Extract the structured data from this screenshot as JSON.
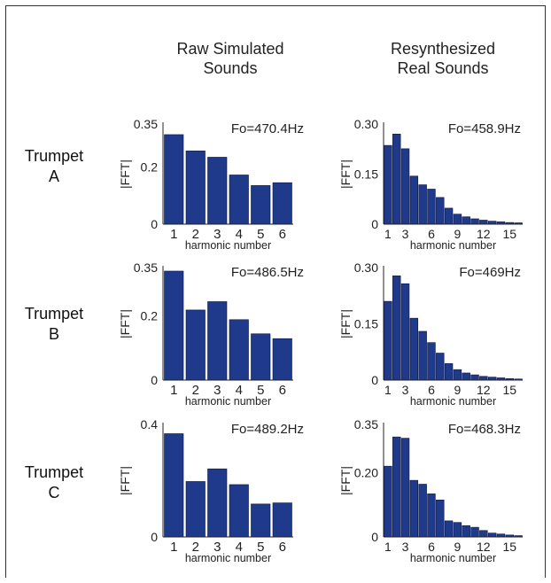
{
  "column_titles": [
    {
      "line1": "Raw Simulated",
      "line2": "Sounds"
    },
    {
      "line1": "Resynthesized",
      "line2": "Real Sounds"
    }
  ],
  "row_labels": [
    {
      "line1": "Trumpet",
      "line2": "A"
    },
    {
      "line1": "Trumpet",
      "line2": "B"
    },
    {
      "line1": "Trumpet",
      "line2": "C"
    }
  ],
  "colors": {
    "bar": "#1f3a8a",
    "bar_edge": "#0b1440",
    "axis": "#222222"
  },
  "chart_data": [
    {
      "type": "bar",
      "row": 0,
      "col": 0,
      "annotation": "Fo=470.4Hz",
      "xlabel": "harmonic number",
      "ylabel": "|FFT|",
      "x": [
        1,
        2,
        3,
        4,
        5,
        6
      ],
      "values": [
        0.313,
        0.256,
        0.234,
        0.172,
        0.135,
        0.145
      ],
      "ylim": [
        0,
        0.35
      ],
      "yticks": [
        0,
        0.2,
        0.35
      ],
      "ytick_labels": [
        "0",
        "0.2",
        "0.35"
      ],
      "xtick_labels": [
        "1",
        "2",
        "3",
        "4",
        "5",
        "6"
      ]
    },
    {
      "type": "bar",
      "row": 0,
      "col": 1,
      "annotation": "Fo=458.9Hz",
      "xlabel": "harmonic number",
      "ylabel": "|FFT|",
      "x": [
        1,
        2,
        3,
        4,
        5,
        6,
        7,
        8,
        9,
        10,
        11,
        12,
        13,
        14,
        15,
        16
      ],
      "values": [
        0.236,
        0.27,
        0.226,
        0.144,
        0.118,
        0.105,
        0.08,
        0.048,
        0.03,
        0.022,
        0.016,
        0.012,
        0.009,
        0.007,
        0.005,
        0.004
      ],
      "ylim": [
        0,
        0.3
      ],
      "yticks": [
        0,
        0.15,
        0.3
      ],
      "ytick_labels": [
        "0",
        "0.15",
        "0.30"
      ],
      "xtick_labels": [
        "1",
        "3",
        "6",
        "9",
        "12",
        "15"
      ],
      "xtick_positions": [
        1,
        3,
        6,
        9,
        12,
        15
      ]
    },
    {
      "type": "bar",
      "row": 1,
      "col": 0,
      "annotation": "Fo=486.5Hz",
      "xlabel": "harmonic number",
      "ylabel": "|FFT|",
      "x": [
        1,
        2,
        3,
        4,
        5,
        6
      ],
      "values": [
        0.339,
        0.218,
        0.244,
        0.188,
        0.144,
        0.129
      ],
      "ylim": [
        0,
        0.35
      ],
      "yticks": [
        0,
        0.2,
        0.35
      ],
      "ytick_labels": [
        "0",
        "0.2",
        "0.35"
      ],
      "xtick_labels": [
        "1",
        "2",
        "3",
        "4",
        "5",
        "6"
      ]
    },
    {
      "type": "bar",
      "row": 1,
      "col": 1,
      "annotation": "Fo=469Hz",
      "xlabel": "harmonic number",
      "ylabel": "|FFT|",
      "x": [
        1,
        2,
        3,
        4,
        5,
        6,
        7,
        8,
        9,
        10,
        11,
        12,
        13,
        14,
        15,
        16
      ],
      "values": [
        0.21,
        0.278,
        0.257,
        0.165,
        0.13,
        0.1,
        0.072,
        0.044,
        0.028,
        0.019,
        0.014,
        0.01,
        0.008,
        0.006,
        0.004,
        0.003
      ],
      "ylim": [
        0,
        0.3
      ],
      "yticks": [
        0,
        0.15,
        0.3
      ],
      "ytick_labels": [
        "0",
        "0.15",
        "0.30"
      ],
      "xtick_labels": [
        "1",
        "3",
        "6",
        "9",
        "12",
        "15"
      ],
      "xtick_positions": [
        1,
        3,
        6,
        9,
        12,
        15
      ]
    },
    {
      "type": "bar",
      "row": 2,
      "col": 0,
      "annotation": "Fo=489.2Hz",
      "xlabel": "harmonic number",
      "ylabel": "|FFT|",
      "x": [
        1,
        2,
        3,
        4,
        5,
        6
      ],
      "values": [
        0.367,
        0.197,
        0.242,
        0.186,
        0.117,
        0.121
      ],
      "ylim": [
        0,
        0.4
      ],
      "yticks": [
        0,
        0.4
      ],
      "ytick_labels": [
        "0",
        "0.4"
      ],
      "xtick_labels": [
        "1",
        "2",
        "3",
        "4",
        "5",
        "6"
      ]
    },
    {
      "type": "bar",
      "row": 2,
      "col": 1,
      "annotation": "Fo=468.3Hz",
      "xlabel": "harmonic number",
      "ylabel": "|FFT|",
      "x": [
        1,
        2,
        3,
        4,
        5,
        6,
        7,
        8,
        9,
        10,
        11,
        12,
        13,
        14,
        15,
        16
      ],
      "values": [
        0.22,
        0.311,
        0.307,
        0.176,
        0.164,
        0.134,
        0.115,
        0.05,
        0.045,
        0.035,
        0.03,
        0.02,
        0.012,
        0.009,
        0.006,
        0.004
      ],
      "ylim": [
        0,
        0.35
      ],
      "yticks": [
        0,
        0.2,
        0.35
      ],
      "ytick_labels": [
        "0",
        "0.20",
        "0.35"
      ],
      "xtick_labels": [
        "1",
        "3",
        "6",
        "9",
        "12",
        "15"
      ],
      "xtick_positions": [
        1,
        3,
        6,
        9,
        12,
        15
      ]
    }
  ]
}
